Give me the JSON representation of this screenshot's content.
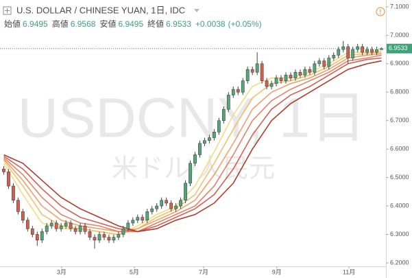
{
  "chart_data": {
    "type": "candlestick",
    "title": "U.S. DOLLAR / CHINESE YUAN, 1日, IDC",
    "ohlc_legend": [
      {
        "label": "始値",
        "value": 6.9495
      },
      {
        "label": "高値",
        "value": 6.9568
      },
      {
        "label": "安値",
        "value": 6.9495
      },
      {
        "label": "終値",
        "value": 6.9533
      }
    ],
    "change": "+0.0038",
    "change_pct": "(+0.05%)",
    "watermark": "USDCNY, 1日",
    "watermark_sub": "米ドル/人民元",
    "last_price": 6.9533,
    "up_color": "#53a57a",
    "down_color": "#d0604f",
    "last_color": "#3ea27a",
    "xlim": [
      0,
      80
    ],
    "ylim": [
      6.183,
      7.124
    ],
    "xticks": [
      {
        "value": 12.6,
        "label": "3月"
      },
      {
        "value": 27.8,
        "label": "5月"
      },
      {
        "value": 42.3,
        "label": "7月"
      },
      {
        "value": 57.6,
        "label": "9月"
      },
      {
        "value": 72.7,
        "label": "11月"
      }
    ],
    "yticks": [
      {
        "value": 6.2,
        "label": "6.2000"
      },
      {
        "value": 6.3,
        "label": "6.3000"
      },
      {
        "value": 6.4,
        "label": "6.4000"
      },
      {
        "value": 6.5,
        "label": "6.5000"
      },
      {
        "value": 6.6,
        "label": "6.6000"
      },
      {
        "value": 6.7,
        "label": "6.7000"
      },
      {
        "value": 6.8,
        "label": "6.8000"
      },
      {
        "value": 6.9,
        "label": "6.9000"
      },
      {
        "value": 7.0,
        "label": "7.0000"
      },
      {
        "value": 7.1,
        "label": "7.1000"
      }
    ],
    "open": [
      6.53,
      6.52,
      6.47,
      6.42,
      6.38,
      6.35,
      6.32,
      6.3,
      6.28,
      6.31,
      6.33,
      6.34,
      6.32,
      6.33,
      6.34,
      6.32,
      6.31,
      6.33,
      6.31,
      6.29,
      6.28,
      6.3,
      6.29,
      6.28,
      6.29,
      6.3,
      6.32,
      6.34,
      6.35,
      6.36,
      6.35,
      6.38,
      6.39,
      6.4,
      6.42,
      6.41,
      6.39,
      6.4,
      6.42,
      6.48,
      6.55,
      6.58,
      6.62,
      6.63,
      6.64,
      6.66,
      6.7,
      6.74,
      6.79,
      6.81,
      6.8,
      6.84,
      6.88,
      6.87,
      6.9,
      6.84,
      6.82,
      6.83,
      6.85,
      6.84,
      6.86,
      6.85,
      6.87,
      6.86,
      6.88,
      6.87,
      6.9,
      6.91,
      6.89,
      6.92,
      6.93,
      6.95,
      6.96,
      6.92,
      6.95,
      6.96,
      6.94,
      6.95,
      6.94,
      6.9495
    ],
    "high": [
      6.54,
      6.53,
      6.48,
      6.43,
      6.39,
      6.36,
      6.33,
      6.31,
      6.32,
      6.34,
      6.35,
      6.35,
      6.34,
      6.35,
      6.35,
      6.33,
      6.34,
      6.34,
      6.32,
      6.3,
      6.31,
      6.31,
      6.3,
      6.3,
      6.31,
      6.33,
      6.35,
      6.36,
      6.37,
      6.37,
      6.39,
      6.4,
      6.41,
      6.43,
      6.43,
      6.42,
      6.41,
      6.43,
      6.49,
      6.56,
      6.59,
      6.63,
      6.64,
      6.65,
      6.67,
      6.71,
      6.75,
      6.8,
      6.82,
      6.82,
      6.85,
      6.89,
      6.89,
      6.94,
      6.91,
      6.85,
      6.84,
      6.86,
      6.86,
      6.87,
      6.87,
      6.88,
      6.88,
      6.89,
      6.89,
      6.91,
      6.92,
      6.92,
      6.93,
      6.94,
      6.96,
      6.98,
      6.97,
      6.96,
      6.97,
      6.97,
      6.96,
      6.96,
      6.96,
      6.9568
    ],
    "low": [
      6.51,
      6.46,
      6.41,
      6.37,
      6.34,
      6.31,
      6.29,
      6.26,
      6.27,
      6.3,
      6.32,
      6.31,
      6.31,
      6.32,
      6.31,
      6.3,
      6.3,
      6.3,
      6.28,
      6.25,
      6.27,
      6.28,
      6.27,
      6.27,
      6.28,
      6.29,
      6.31,
      6.33,
      6.34,
      6.34,
      6.34,
      6.37,
      6.38,
      6.39,
      6.4,
      6.38,
      6.38,
      6.39,
      6.41,
      6.47,
      6.54,
      6.57,
      6.61,
      6.62,
      6.63,
      6.65,
      6.69,
      6.73,
      6.78,
      6.79,
      6.79,
      6.83,
      6.86,
      6.86,
      6.83,
      6.81,
      6.81,
      6.82,
      6.83,
      6.83,
      6.84,
      6.84,
      6.85,
      6.85,
      6.86,
      6.86,
      6.89,
      6.88,
      6.88,
      6.91,
      6.92,
      6.94,
      6.9,
      6.91,
      6.94,
      6.93,
      6.93,
      6.93,
      6.93,
      6.9495
    ],
    "close": [
      6.52,
      6.47,
      6.42,
      6.38,
      6.35,
      6.32,
      6.3,
      6.28,
      6.31,
      6.33,
      6.34,
      6.32,
      6.33,
      6.34,
      6.32,
      6.31,
      6.33,
      6.31,
      6.29,
      6.28,
      6.3,
      6.29,
      6.28,
      6.29,
      6.3,
      6.32,
      6.34,
      6.35,
      6.36,
      6.35,
      6.38,
      6.39,
      6.4,
      6.42,
      6.41,
      6.39,
      6.4,
      6.42,
      6.48,
      6.55,
      6.58,
      6.62,
      6.63,
      6.64,
      6.66,
      6.7,
      6.74,
      6.79,
      6.81,
      6.8,
      6.84,
      6.88,
      6.87,
      6.9,
      6.84,
      6.82,
      6.83,
      6.85,
      6.84,
      6.86,
      6.85,
      6.87,
      6.86,
      6.88,
      6.87,
      6.9,
      6.91,
      6.89,
      6.92,
      6.93,
      6.95,
      6.96,
      6.92,
      6.95,
      6.96,
      6.94,
      6.95,
      6.94,
      6.95,
      6.9533
    ],
    "ribbon": [
      {
        "color": "#f3dc7e",
        "x": [
          0,
          4,
          8,
          12,
          16,
          20,
          24,
          28,
          32,
          36,
          40,
          44,
          48,
          52,
          56,
          60,
          64,
          68,
          72,
          76,
          79
        ],
        "values": [
          6.55,
          6.44,
          6.34,
          6.32,
          6.32,
          6.31,
          6.3,
          6.33,
          6.37,
          6.4,
          6.47,
          6.59,
          6.72,
          6.82,
          6.85,
          6.85,
          6.87,
          6.9,
          6.94,
          6.94,
          6.945
        ]
      },
      {
        "color": "#f2c06a",
        "x": [
          0,
          4,
          8,
          12,
          16,
          20,
          24,
          28,
          32,
          36,
          40,
          44,
          48,
          52,
          56,
          60,
          64,
          68,
          72,
          76,
          79
        ],
        "values": [
          6.56,
          6.47,
          6.37,
          6.33,
          6.32,
          6.31,
          6.3,
          6.32,
          6.36,
          6.39,
          6.44,
          6.55,
          6.67,
          6.78,
          6.83,
          6.84,
          6.86,
          6.89,
          6.93,
          6.935,
          6.94
        ]
      },
      {
        "color": "#eea066",
        "x": [
          0,
          4,
          8,
          12,
          16,
          20,
          24,
          28,
          32,
          36,
          40,
          44,
          48,
          52,
          56,
          60,
          64,
          68,
          72,
          76,
          79
        ],
        "values": [
          6.565,
          6.49,
          6.4,
          6.35,
          6.33,
          6.32,
          6.31,
          6.32,
          6.35,
          6.38,
          6.42,
          6.51,
          6.62,
          6.74,
          6.8,
          6.83,
          6.85,
          6.88,
          6.92,
          6.93,
          6.935
        ]
      },
      {
        "color": "#e5806a",
        "x": [
          0,
          4,
          8,
          12,
          16,
          20,
          24,
          28,
          32,
          36,
          40,
          44,
          48,
          52,
          56,
          60,
          64,
          68,
          72,
          76,
          79
        ],
        "values": [
          6.57,
          6.51,
          6.43,
          6.37,
          6.34,
          6.33,
          6.31,
          6.31,
          6.34,
          6.37,
          6.4,
          6.47,
          6.58,
          6.7,
          6.77,
          6.81,
          6.84,
          6.87,
          6.91,
          6.92,
          6.93
        ]
      },
      {
        "color": "#d4604e",
        "x": [
          0,
          4,
          8,
          12,
          16,
          20,
          24,
          28,
          32,
          36,
          40,
          44,
          48,
          52,
          56,
          60,
          64,
          68,
          72,
          76,
          79
        ],
        "values": [
          6.575,
          6.53,
          6.46,
          6.4,
          6.36,
          6.34,
          6.32,
          6.31,
          6.33,
          6.36,
          6.39,
          6.44,
          6.53,
          6.65,
          6.74,
          6.79,
          6.82,
          6.86,
          6.9,
          6.915,
          6.92
        ]
      },
      {
        "color": "#b23a2c",
        "x": [
          0,
          4,
          8,
          12,
          16,
          20,
          24,
          28,
          32,
          36,
          40,
          44,
          48,
          52,
          56,
          60,
          64,
          68,
          72,
          76,
          79
        ],
        "values": [
          6.58,
          6.55,
          6.49,
          6.43,
          6.39,
          6.36,
          6.33,
          6.31,
          6.32,
          6.35,
          6.37,
          6.41,
          6.48,
          6.6,
          6.7,
          6.76,
          6.8,
          6.84,
          6.88,
          6.9,
          6.91
        ]
      }
    ]
  }
}
